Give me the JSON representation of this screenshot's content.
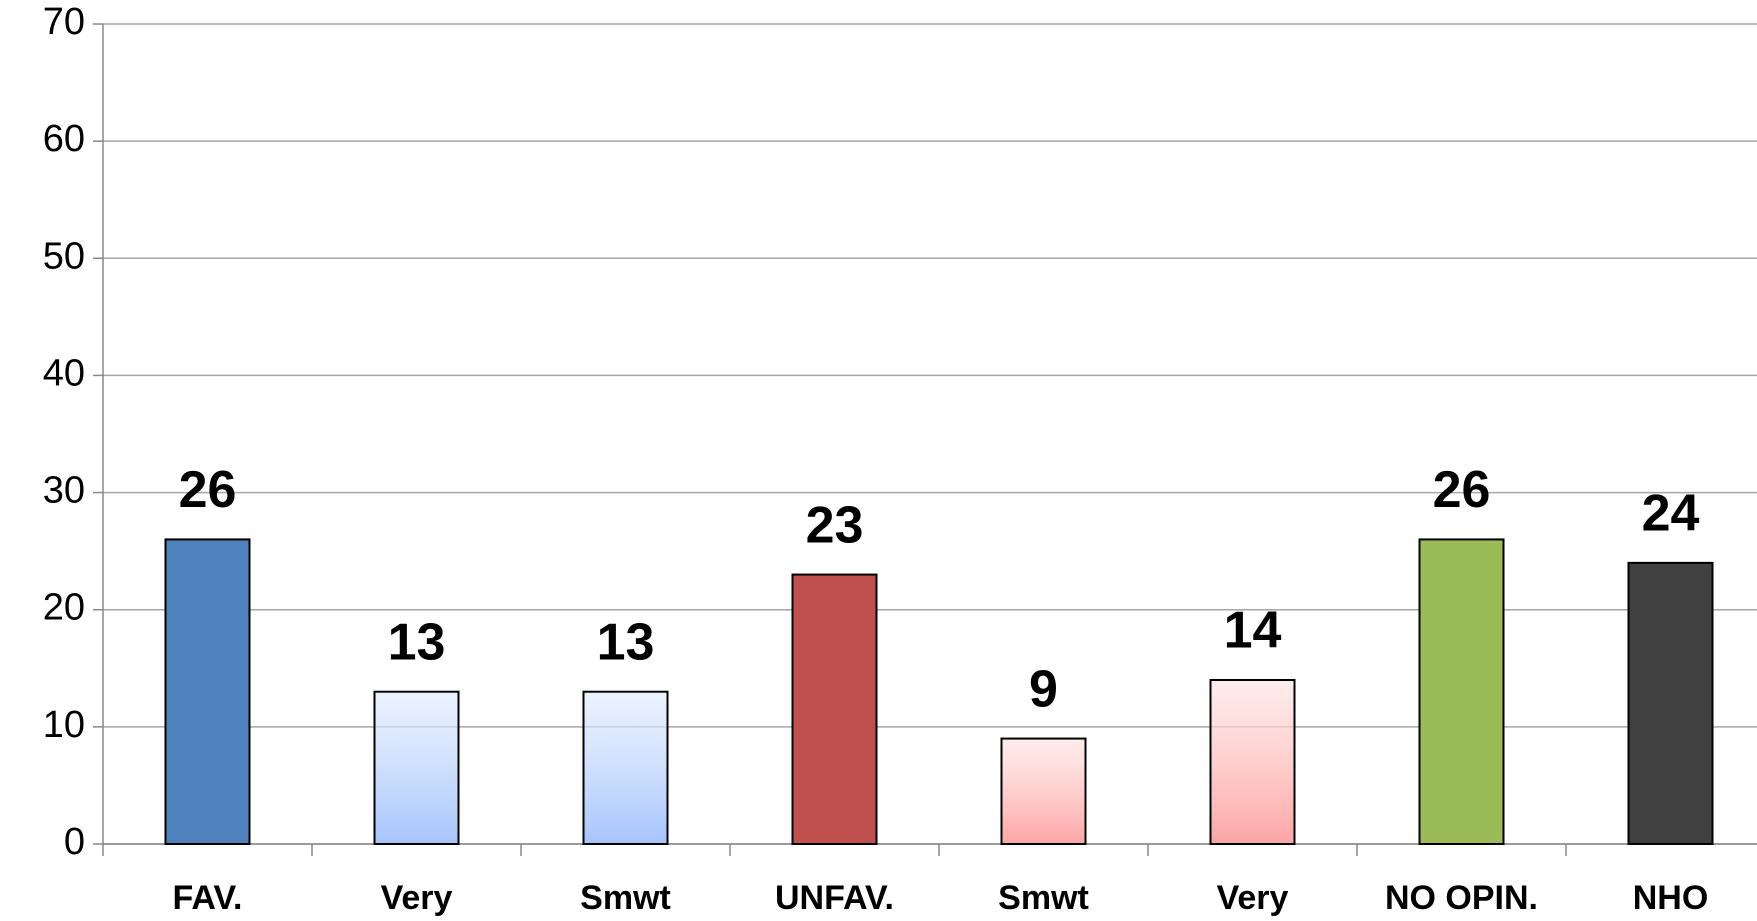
{
  "chart_data": {
    "type": "bar",
    "categories": [
      "FAV.",
      "Very",
      "Smwt",
      "UNFAV.",
      "Smwt",
      "Very",
      "NO OPIN.",
      "NHO"
    ],
    "values": [
      26,
      13,
      13,
      23,
      9,
      14,
      26,
      24
    ],
    "colors": [
      "#4f81bd",
      "#a6c4fb",
      "#a6c4fb",
      "#c0504d",
      "#fca5a5",
      "#fca5a5",
      "#9bbb59",
      "#404040"
    ],
    "gradient": [
      false,
      true,
      true,
      false,
      true,
      true,
      false,
      false
    ],
    "ylim": [
      0,
      70
    ],
    "yticks": [
      0,
      10,
      20,
      30,
      40,
      50,
      60,
      70
    ],
    "grid": true
  }
}
